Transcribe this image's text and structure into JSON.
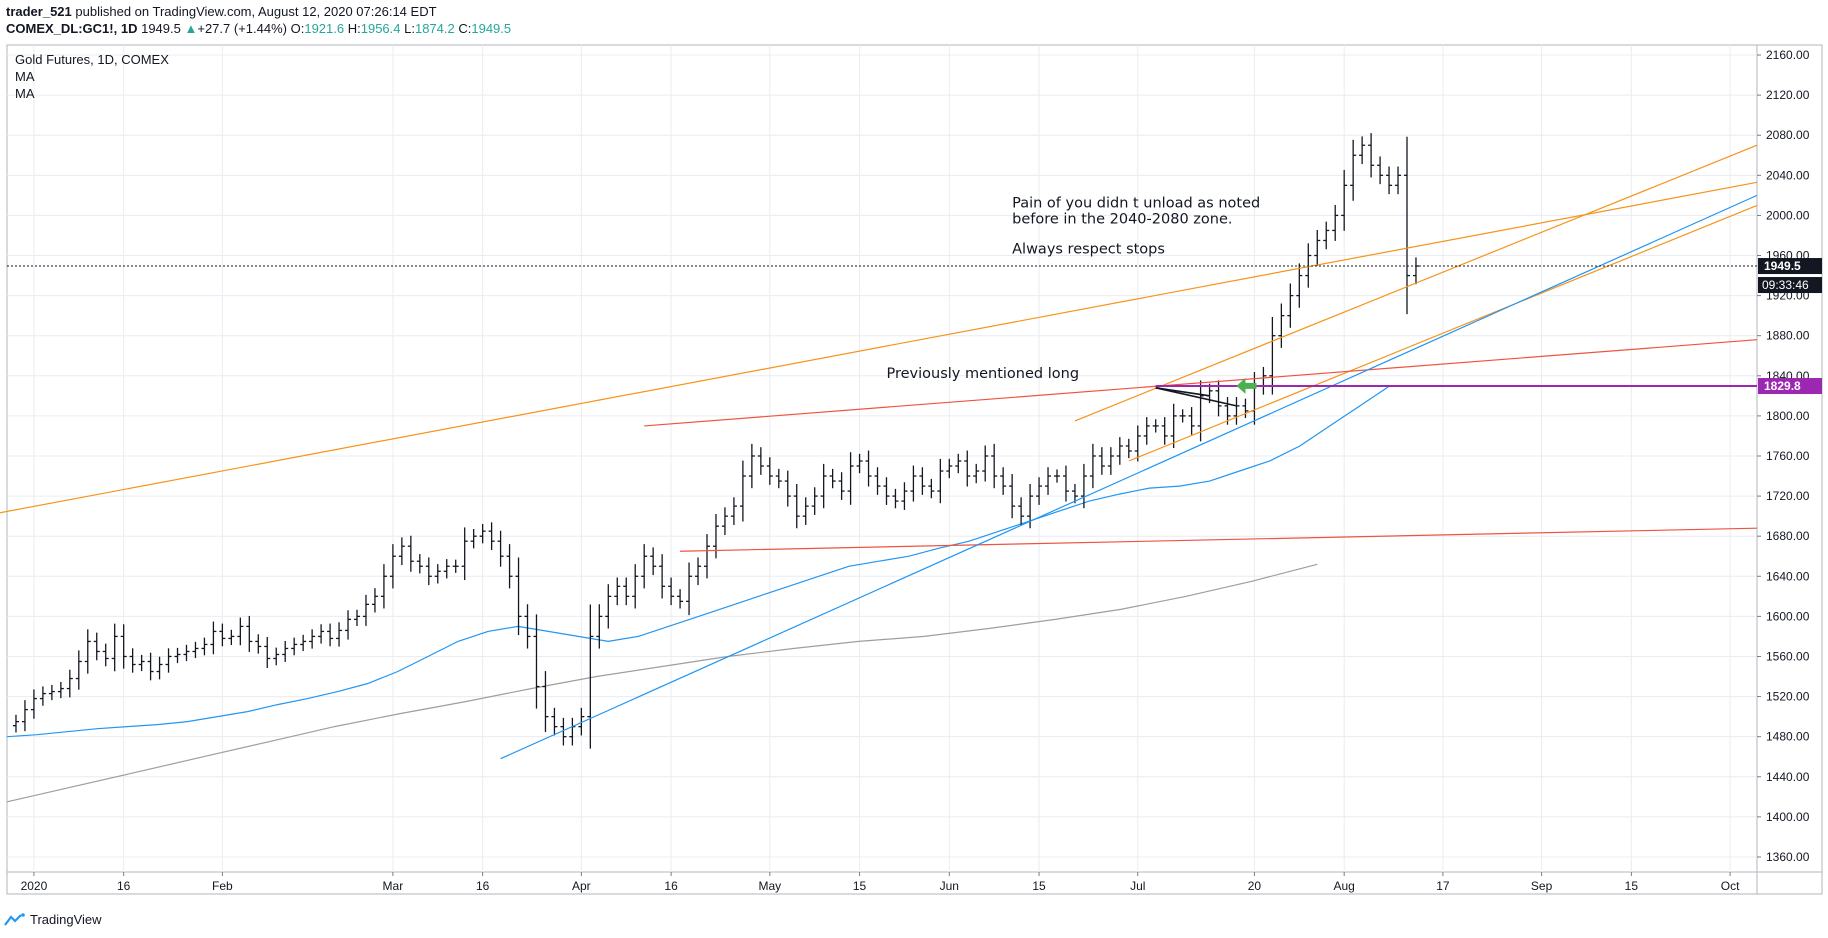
{
  "header": {
    "user": "trader_521",
    "published": "published on TradingView.com, August 12, 2020 07:26:14 EDT",
    "symbol": "COMEX_DL:GC1!, 1D",
    "price": "1949.5",
    "change": "+27.7 (+1.44%)",
    "o_label": "O:",
    "o": "1921.6",
    "h_label": "H:",
    "h": "1956.4",
    "l_label": "L:",
    "l": "1874.2",
    "c_label": "C:",
    "c": "1949.5"
  },
  "legend": {
    "title": "Gold Futures, 1D, COMEX",
    "ma1": "MA",
    "ma2": "MA"
  },
  "footer": {
    "brand": "TradingView"
  },
  "colors": {
    "orange": "#f7931a",
    "red": "#f0533f",
    "blue": "#2196f3",
    "gray": "#9e9e9e",
    "purple": "#9c27b0",
    "green": "#4caf50",
    "up": "#26a69a"
  },
  "chart_data": {
    "type": "ohlc",
    "title": "Gold Futures, 1D, COMEX",
    "y_ticks": [
      2160,
      2120,
      2080,
      2040,
      2000,
      1960,
      1920,
      1880,
      1840,
      1800,
      1760,
      1720,
      1680,
      1640,
      1600,
      1560,
      1520,
      1480,
      1440,
      1400,
      1360
    ],
    "ylim": [
      1345,
      2170
    ],
    "x_ticks": [
      {
        "label": "2020",
        "bar": 3
      },
      {
        "label": "16",
        "bar": 13
      },
      {
        "label": "Feb",
        "bar": 24
      },
      {
        "label": "Mar",
        "bar": 43
      },
      {
        "label": "16",
        "bar": 53
      },
      {
        "label": "Apr",
        "bar": 64
      },
      {
        "label": "16",
        "bar": 74
      },
      {
        "label": "May",
        "bar": 85
      },
      {
        "label": "15",
        "bar": 95
      },
      {
        "label": "Jun",
        "bar": 105
      },
      {
        "label": "15",
        "bar": 115
      },
      {
        "label": "Jul",
        "bar": 126
      },
      {
        "label": "20",
        "bar": 139
      },
      {
        "label": "Aug",
        "bar": 149
      },
      {
        "label": "17",
        "bar": 160
      },
      {
        "label": "Sep",
        "bar": 171
      },
      {
        "label": "15",
        "bar": 181
      },
      {
        "label": "Oct",
        "bar": 192
      }
    ],
    "xlim_bars": [
      0,
      195
    ],
    "price_close": [
      1495,
      1507,
      1518,
      1523,
      1525,
      1528,
      1538,
      1555,
      1575,
      1565,
      1558,
      1580,
      1560,
      1552,
      1555,
      1545,
      1552,
      1560,
      1562,
      1565,
      1568,
      1572,
      1585,
      1578,
      1580,
      1590,
      1575,
      1570,
      1558,
      1562,
      1568,
      1572,
      1575,
      1580,
      1585,
      1578,
      1586,
      1597,
      1600,
      1612,
      1620,
      1640,
      1660,
      1670,
      1655,
      1650,
      1640,
      1645,
      1650,
      1650,
      1675,
      1680,
      1685,
      1675,
      1660,
      1640,
      1600,
      1580,
      1530,
      1500,
      1490,
      1480,
      1490,
      1500,
      1580,
      1600,
      1620,
      1630,
      1620,
      1640,
      1660,
      1650,
      1630,
      1620,
      1615,
      1640,
      1650,
      1670,
      1690,
      1700,
      1710,
      1740,
      1760,
      1750,
      1740,
      1735,
      1720,
      1700,
      1710,
      1720,
      1740,
      1735,
      1725,
      1750,
      1755,
      1740,
      1730,
      1720,
      1715,
      1725,
      1740,
      1730,
      1725,
      1745,
      1750,
      1755,
      1740,
      1745,
      1760,
      1740,
      1730,
      1710,
      1700,
      1720,
      1730,
      1740,
      1740,
      1725,
      1720,
      1740,
      1760,
      1750,
      1760,
      1770,
      1765,
      1780,
      1790,
      1790,
      1780,
      1800,
      1800,
      1790,
      1820,
      1825,
      1810,
      1800,
      1810,
      1805,
      1830,
      1840,
      1880,
      1900,
      1920,
      1940,
      1960,
      1975,
      1985,
      2000,
      2030,
      2060,
      2070,
      2050,
      2040,
      2030,
      2040,
      1940,
      1949.5
    ],
    "ma50": [
      1480,
      1482,
      1485,
      1488,
      1490,
      1492,
      1495,
      1500,
      1505,
      1512,
      1518,
      1525,
      1533,
      1545,
      1560,
      1575,
      1585,
      1590,
      1585,
      1580,
      1575,
      1580,
      1590,
      1600,
      1610,
      1620,
      1630,
      1640,
      1650,
      1655,
      1660,
      1668,
      1675,
      1685,
      1695,
      1705,
      1715,
      1722,
      1728,
      1730,
      1735,
      1745,
      1755,
      1770,
      1790,
      1810,
      1830
    ],
    "ma50_start_bar": 0,
    "ma50_step": 3.35,
    "ma200": [
      1415,
      1430,
      1445,
      1460,
      1475,
      1490,
      1503,
      1515,
      1528,
      1540,
      1550,
      1560,
      1568,
      1575,
      1580,
      1588,
      1597,
      1607,
      1620,
      1635,
      1652
    ],
    "ma200_start_bar": 0,
    "ma200_step": 7.3,
    "trendlines": [
      {
        "color": "orange",
        "from": {
          "bar": -1,
          "price": 1703
        },
        "to": {
          "bar": 195,
          "price": 2033
        }
      },
      {
        "color": "orange",
        "from": {
          "bar": 119,
          "price": 1795
        },
        "to": {
          "bar": 195,
          "price": 2070
        }
      },
      {
        "color": "orange",
        "from": {
          "bar": 125,
          "price": 1755
        },
        "to": {
          "bar": 195,
          "price": 2010
        }
      },
      {
        "color": "red",
        "from": {
          "bar": 71,
          "price": 1790
        },
        "to": {
          "bar": 195,
          "price": 1876
        }
      },
      {
        "color": "red",
        "from": {
          "bar": 75,
          "price": 1665
        },
        "to": {
          "bar": 195,
          "price": 1688
        }
      },
      {
        "color": "blue",
        "from": {
          "bar": 55,
          "price": 1458
        },
        "to": {
          "bar": 195,
          "price": 2020
        }
      },
      {
        "color": "black",
        "from": {
          "bar": 128,
          "price": 1828
        },
        "to": {
          "bar": 137,
          "price": 1810
        }
      },
      {
        "color": "black",
        "from": {
          "bar": 128,
          "price": 1828
        },
        "to": {
          "bar": 134,
          "price": 1820
        }
      }
    ],
    "hlines": [
      {
        "price": 1829.8,
        "from_bar": 128,
        "color": "purple",
        "label": "1829.8"
      },
      {
        "price": 1949.5,
        "from_bar": -1,
        "color": "dashed",
        "label": "1949.5",
        "sublabel": "09:33:46"
      }
    ],
    "annotations": [
      {
        "text": "Pain of you didn t unload as noted",
        "bar": 112,
        "price": 2008
      },
      {
        "text": "before in the 2040-2080 zone.",
        "bar": 112,
        "price": 1992
      },
      {
        "text": "Always respect stops",
        "bar": 112,
        "price": 1962
      },
      {
        "text": "Previously mentioned long",
        "bar": 98,
        "price": 1838
      }
    ],
    "arrow": {
      "bar": 137,
      "price": 1830
    }
  }
}
